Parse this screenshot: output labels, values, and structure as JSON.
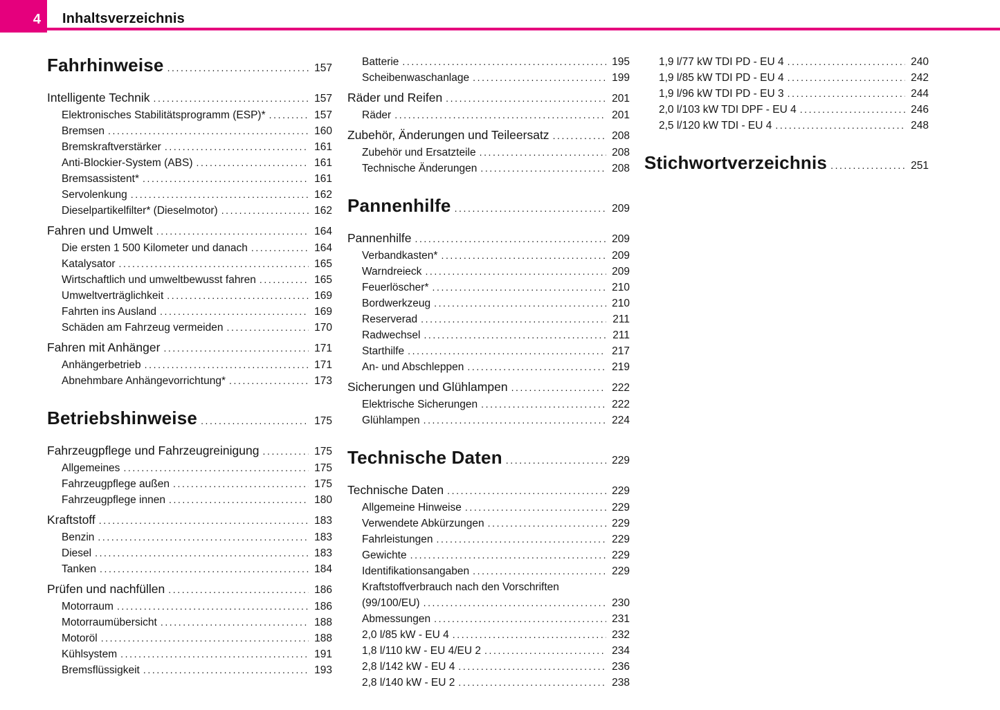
{
  "header": {
    "page_number": "4",
    "title": "Inhaltsverzeichnis",
    "accent_color": "#e5007d"
  },
  "columns": [
    {
      "items": [
        {
          "level": "chapter",
          "label": "Fahrhinweise",
          "page": "157"
        },
        {
          "level": "section",
          "label": "Intelligente Technik",
          "page": "157"
        },
        {
          "level": "sub",
          "label": "Elektronisches Stabilitätsprogramm (ESP)*",
          "page": "157"
        },
        {
          "level": "sub",
          "label": "Bremsen",
          "page": "160"
        },
        {
          "level": "sub",
          "label": "Bremskraftverstärker",
          "page": "161"
        },
        {
          "level": "sub",
          "label": "Anti-Blockier-System (ABS)",
          "page": "161"
        },
        {
          "level": "sub",
          "label": "Bremsassistent*",
          "page": "161"
        },
        {
          "level": "sub",
          "label": "Servolenkung",
          "page": "162"
        },
        {
          "level": "sub",
          "label": "Dieselpartikelfilter* (Dieselmotor)",
          "page": "162"
        },
        {
          "level": "section",
          "label": "Fahren und Umwelt",
          "page": "164"
        },
        {
          "level": "sub",
          "label": "Die ersten 1 500 Kilometer und danach",
          "page": "164"
        },
        {
          "level": "sub",
          "label": "Katalysator",
          "page": "165"
        },
        {
          "level": "sub",
          "label": "Wirtschaftlich und umweltbewusst fahren",
          "page": "165"
        },
        {
          "level": "sub",
          "label": "Umweltverträglichkeit",
          "page": "169"
        },
        {
          "level": "sub",
          "label": "Fahrten ins Ausland",
          "page": "169"
        },
        {
          "level": "sub",
          "label": "Schäden am Fahrzeug vermeiden",
          "page": "170"
        },
        {
          "level": "section",
          "label": "Fahren mit Anhänger",
          "page": "171"
        },
        {
          "level": "sub",
          "label": "Anhängerbetrieb",
          "page": "171"
        },
        {
          "level": "sub",
          "label": "Abnehmbare Anhängevorrichtung*",
          "page": "173"
        },
        {
          "level": "chapter",
          "label": "Betriebshinweise",
          "page": "175"
        },
        {
          "level": "section",
          "label": "Fahrzeugpflege und Fahrzeugreinigung",
          "page": "175"
        },
        {
          "level": "sub",
          "label": "Allgemeines",
          "page": "175"
        },
        {
          "level": "sub",
          "label": "Fahrzeugpflege außen",
          "page": "175"
        },
        {
          "level": "sub",
          "label": "Fahrzeugpflege innen",
          "page": "180"
        },
        {
          "level": "section",
          "label": "Kraftstoff",
          "page": "183"
        },
        {
          "level": "sub",
          "label": "Benzin",
          "page": "183"
        },
        {
          "level": "sub",
          "label": "Diesel",
          "page": "183"
        },
        {
          "level": "sub",
          "label": "Tanken",
          "page": "184"
        },
        {
          "level": "section",
          "label": "Prüfen und nachfüllen",
          "page": "186"
        },
        {
          "level": "sub",
          "label": "Motorraum",
          "page": "186"
        },
        {
          "level": "sub",
          "label": "Motorraumübersicht",
          "page": "188"
        },
        {
          "level": "sub",
          "label": "Motoröl",
          "page": "188"
        },
        {
          "level": "sub",
          "label": "Kühlsystem",
          "page": "191"
        },
        {
          "level": "sub",
          "label": "Bremsflüssigkeit",
          "page": "193"
        }
      ]
    },
    {
      "items": [
        {
          "level": "sub",
          "label": "Batterie",
          "page": "195"
        },
        {
          "level": "sub",
          "label": "Scheibenwaschanlage",
          "page": "199"
        },
        {
          "level": "section",
          "label": "Räder und Reifen",
          "page": "201"
        },
        {
          "level": "sub",
          "label": "Räder",
          "page": "201"
        },
        {
          "level": "section",
          "label": "Zubehör, Änderungen und Teileersatz",
          "page": "208"
        },
        {
          "level": "sub",
          "label": "Zubehör und Ersatzteile",
          "page": "208"
        },
        {
          "level": "sub",
          "label": "Technische Änderungen",
          "page": "208"
        },
        {
          "level": "chapter",
          "label": "Pannenhilfe",
          "page": "209"
        },
        {
          "level": "section",
          "label": "Pannenhilfe",
          "page": "209"
        },
        {
          "level": "sub",
          "label": "Verbandkasten*",
          "page": "209"
        },
        {
          "level": "sub",
          "label": "Warndreieck",
          "page": "209"
        },
        {
          "level": "sub",
          "label": "Feuerlöscher*",
          "page": "210"
        },
        {
          "level": "sub",
          "label": "Bordwerkzeug",
          "page": "210"
        },
        {
          "level": "sub",
          "label": "Reserverad",
          "page": "211"
        },
        {
          "level": "sub",
          "label": "Radwechsel",
          "page": "211"
        },
        {
          "level": "sub",
          "label": "Starthilfe",
          "page": "217"
        },
        {
          "level": "sub",
          "label": "An- und Abschleppen",
          "page": "219"
        },
        {
          "level": "section",
          "label": "Sicherungen und Glühlampen",
          "page": "222"
        },
        {
          "level": "sub",
          "label": "Elektrische Sicherungen",
          "page": "222"
        },
        {
          "level": "sub",
          "label": "Glühlampen",
          "page": "224"
        },
        {
          "level": "chapter",
          "label": "Technische Daten",
          "page": "229"
        },
        {
          "level": "section",
          "label": "Technische Daten",
          "page": "229"
        },
        {
          "level": "sub",
          "label": "Allgemeine Hinweise",
          "page": "229"
        },
        {
          "level": "sub",
          "label": "Verwendete Abkürzungen",
          "page": "229"
        },
        {
          "level": "sub",
          "label": "Fahrleistungen",
          "page": "229"
        },
        {
          "level": "sub",
          "label": "Gewichte",
          "page": "229"
        },
        {
          "level": "sub",
          "label": "Identifikationsangaben",
          "page": "229"
        },
        {
          "level": "sub",
          "label": "Kraftstoffverbrauch nach den Vorschriften",
          "page": "",
          "leader": false
        },
        {
          "level": "sub",
          "label": "(99/100/EU)",
          "page": "230"
        },
        {
          "level": "sub",
          "label": "Abmessungen",
          "page": "231"
        },
        {
          "level": "sub",
          "label": "2,0 l/85 kW - EU 4",
          "page": "232"
        },
        {
          "level": "sub",
          "label": "1,8 l/110 kW - EU 4/EU 2",
          "page": "234"
        },
        {
          "level": "sub",
          "label": "2,8 l/142 kW - EU 4",
          "page": "236"
        },
        {
          "level": "sub",
          "label": "2,8 l/140 kW - EU 2",
          "page": "238"
        }
      ]
    },
    {
      "items": [
        {
          "level": "sub",
          "label": "1,9 l/77 kW TDI PD - EU 4",
          "page": "240"
        },
        {
          "level": "sub",
          "label": "1,9 l/85 kW TDI PD - EU 4",
          "page": "242"
        },
        {
          "level": "sub",
          "label": "1,9 l/96 kW TDI PD - EU 3",
          "page": "244"
        },
        {
          "level": "sub",
          "label": "2,0 l/103 kW TDI DPF - EU 4",
          "page": "246"
        },
        {
          "level": "sub",
          "label": "2,5 l/120 kW TDI - EU 4",
          "page": "248"
        },
        {
          "level": "chapter",
          "label": "Stichwortverzeichnis",
          "page": "251"
        }
      ]
    }
  ]
}
